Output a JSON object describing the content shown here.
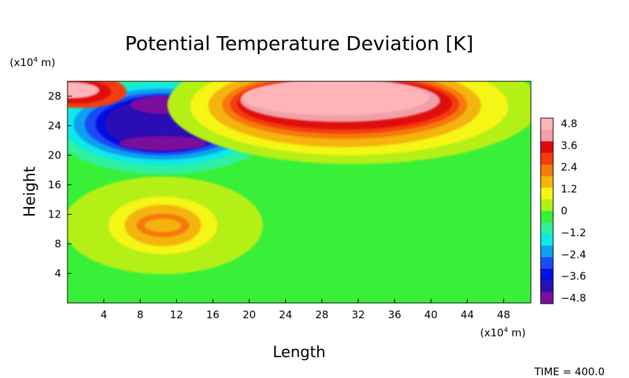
{
  "chart_data": {
    "type": "heatmap",
    "title": "Potential Temperature Deviation [K]",
    "xlabel": "Length",
    "ylabel": "Height",
    "x_unit": "(x10^4 m)",
    "y_unit": "(x10^4 m)",
    "x_range": [
      0,
      51
    ],
    "y_range": [
      0,
      30
    ],
    "x_ticks": [
      "4",
      "8",
      "12",
      "16",
      "20",
      "24",
      "28",
      "32",
      "36",
      "40",
      "44",
      "48"
    ],
    "y_ticks": [
      "4",
      "8",
      "12",
      "16",
      "20",
      "24",
      "28"
    ],
    "colorbar": {
      "min": -5.1,
      "max": 5.1,
      "labels": [
        "4.8",
        "3.6",
        "2.4",
        "1.2",
        "0",
        "−1.2",
        "−2.4",
        "−3.6",
        "−4.8"
      ]
    },
    "features": [
      {
        "kind": "warm anomaly",
        "center": [
          10.5,
          10.5
        ],
        "peak": 2.4
      },
      {
        "kind": "cold anomaly",
        "center": [
          10.5,
          24
        ],
        "peak": -4.8
      },
      {
        "kind": "warm anomaly",
        "center": [
          31,
          26.5
        ],
        "peak": 4.8
      },
      {
        "kind": "warm anomaly",
        "center": [
          2,
          28.5
        ],
        "peak": 4.8
      }
    ],
    "footer": "TIME = 400.0"
  },
  "colors": {
    "palette": [
      "#7a0f9a",
      "#2a0fb5",
      "#0010e0",
      "#1a4cf5",
      "#0fa0ee",
      "#10e8e8",
      "#2ff0a0",
      "#39f039",
      "#b4f018",
      "#f5f514",
      "#f5b40a",
      "#f57a0a",
      "#f53c0a",
      "#e00a0a",
      "#f0a0a8",
      "#ffb4b8"
    ]
  }
}
